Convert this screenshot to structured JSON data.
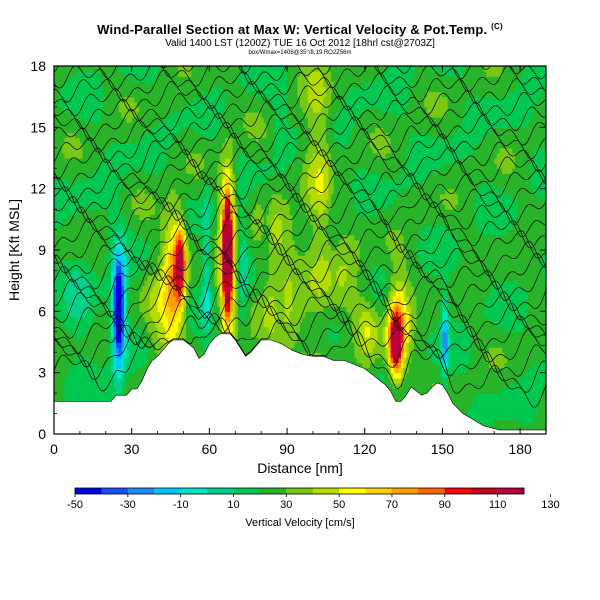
{
  "header": {
    "title": "Wind-Parallel Section at Max W: Vertical Velocity & Pot.Temp.",
    "copyright_mark": "(C)",
    "subtitle": "Valid 1400 LST (1200Z) TUE 16 Oct 2012 [18hrl cst@2703Z]",
    "subsubtitle": "box/Wmax=1408@35°/8,19 RO2Z56m"
  },
  "chart_data": {
    "type": "heatmap",
    "xlabel": "Distance [nm]",
    "ylabel": "Height [Kft MSL]",
    "xlim": [
      0,
      190
    ],
    "ylim": [
      0,
      18
    ],
    "x_ticks": [
      0,
      30,
      60,
      90,
      120,
      150,
      180
    ],
    "y_ticks": [
      0,
      3,
      6,
      9,
      12,
      15,
      18
    ],
    "colorbar": {
      "label": "Vertical Velocity [cm/s]",
      "tick_labels": [
        "-50",
        "-30",
        "-10",
        "10",
        "30",
        "50",
        "70",
        "90",
        "110",
        "130"
      ],
      "colors": [
        "#0000e6",
        "#1450ff",
        "#1e8cff",
        "#00c8ff",
        "#00e6c8",
        "#00d28c",
        "#00c850",
        "#28b428",
        "#78c814",
        "#b4dc00",
        "#ffff00",
        "#ffd200",
        "#ffa000",
        "#ff6400",
        "#ff0000",
        "#c8001e",
        "#b4003c"
      ]
    },
    "terrain_profile": [
      [
        0,
        1.6
      ],
      [
        4,
        1.6
      ],
      [
        8,
        1.6
      ],
      [
        12,
        1.6
      ],
      [
        16,
        1.6
      ],
      [
        20,
        1.6
      ],
      [
        22,
        1.6
      ],
      [
        24,
        1.9
      ],
      [
        26,
        1.9
      ],
      [
        28,
        1.9
      ],
      [
        30,
        2.2
      ],
      [
        32,
        2.2
      ],
      [
        34,
        2.6
      ],
      [
        36,
        3.2
      ],
      [
        38,
        3.6
      ],
      [
        40,
        3.8
      ],
      [
        42,
        4.1
      ],
      [
        44,
        4.4
      ],
      [
        46,
        4.6
      ],
      [
        48,
        4.6
      ],
      [
        50,
        4.6
      ],
      [
        52,
        4.4
      ],
      [
        54,
        4.2
      ],
      [
        56,
        3.7
      ],
      [
        58,
        3.9
      ],
      [
        60,
        4.4
      ],
      [
        62,
        4.7
      ],
      [
        64,
        4.9
      ],
      [
        66,
        4.9
      ],
      [
        68,
        4.9
      ],
      [
        70,
        4.6
      ],
      [
        72,
        4.2
      ],
      [
        74,
        3.8
      ],
      [
        76,
        4.0
      ],
      [
        78,
        4.3
      ],
      [
        80,
        4.6
      ],
      [
        84,
        4.6
      ],
      [
        88,
        4.4
      ],
      [
        92,
        4.1
      ],
      [
        96,
        3.9
      ],
      [
        100,
        3.8
      ],
      [
        104,
        3.8
      ],
      [
        108,
        3.6
      ],
      [
        112,
        3.6
      ],
      [
        116,
        3.4
      ],
      [
        120,
        3.2
      ],
      [
        124,
        2.8
      ],
      [
        128,
        2.4
      ],
      [
        130,
        2.1
      ],
      [
        132,
        1.6
      ],
      [
        134,
        1.6
      ],
      [
        136,
        1.9
      ],
      [
        138,
        2.3
      ],
      [
        140,
        2.1
      ],
      [
        142,
        1.9
      ],
      [
        144,
        2.0
      ],
      [
        146,
        2.3
      ],
      [
        148,
        2.5
      ],
      [
        150,
        2.4
      ],
      [
        152,
        2.0
      ],
      [
        154,
        1.5
      ],
      [
        158,
        1.0
      ],
      [
        162,
        0.7
      ],
      [
        166,
        0.4
      ],
      [
        172,
        0.2
      ],
      [
        180,
        0.2
      ],
      [
        190,
        0.2
      ]
    ],
    "updraft_blobs": [
      {
        "x": 46,
        "y": 7.6,
        "sx": 2.8,
        "sy": 2.4,
        "w": 48
      },
      {
        "x": 49,
        "y": 8.3,
        "sx": 1.5,
        "sy": 1.3,
        "w": 72
      },
      {
        "x": 67,
        "y": 8.8,
        "sx": 2.2,
        "sy": 2.9,
        "w": 58
      },
      {
        "x": 67,
        "y": 8.9,
        "sx": 1.2,
        "sy": 1.9,
        "w": 100
      },
      {
        "x": 86,
        "y": 7.2,
        "sx": 6,
        "sy": 3,
        "w": 22
      },
      {
        "x": 102,
        "y": 12,
        "sx": 4,
        "sy": 6,
        "w": 20
      },
      {
        "x": 133,
        "y": 5.2,
        "sx": 3.0,
        "sy": 1.7,
        "w": 56
      },
      {
        "x": 132,
        "y": 4.4,
        "sx": 1.6,
        "sy": 1.0,
        "w": 72
      },
      {
        "x": 121,
        "y": 5.2,
        "sx": 3,
        "sy": 1.1,
        "w": 22
      },
      {
        "x": 40,
        "y": 5.3,
        "sx": 4,
        "sy": 2,
        "w": 18
      },
      {
        "x": 112,
        "y": 8,
        "sx": 5,
        "sy": 2,
        "w": 12
      }
    ],
    "downdraft_blobs": [
      {
        "x": 25,
        "y": 5.7,
        "sx": 2.1,
        "sy": 2.5,
        "w": -48
      },
      {
        "x": 25,
        "y": 6.3,
        "sx": 1.3,
        "sy": 1.3,
        "w": -56
      },
      {
        "x": 10,
        "y": 6.6,
        "sx": 4,
        "sy": 1.9,
        "w": -12
      },
      {
        "x": 151,
        "y": 4.7,
        "sx": 1.0,
        "sy": 1.6,
        "w": -40
      },
      {
        "x": 59,
        "y": 8.3,
        "sx": 1.4,
        "sy": 2.6,
        "w": -22
      },
      {
        "x": 73,
        "y": 7.9,
        "sx": 1.4,
        "sy": 2.4,
        "w": -18
      },
      {
        "x": 82,
        "y": 9.8,
        "sx": 1.5,
        "sy": 1.4,
        "w": -14
      },
      {
        "x": 87,
        "y": 15.4,
        "sx": 1.5,
        "sy": 1.5,
        "w": -12
      },
      {
        "x": 108,
        "y": 10.8,
        "sx": 1.5,
        "sy": 2,
        "w": -10
      },
      {
        "x": 87,
        "y": 6.5,
        "sx": 1.4,
        "sy": 1.4,
        "w": -12
      }
    ],
    "isentrope_count": 27,
    "isentrope_base": 2.2,
    "isentrope_spacing": 0.63
  }
}
